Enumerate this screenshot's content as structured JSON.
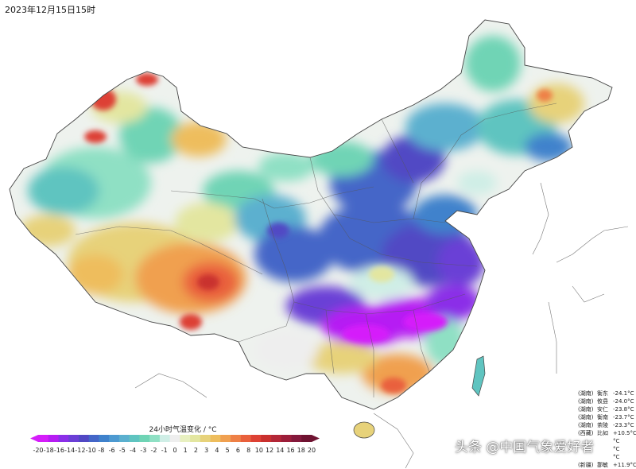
{
  "title": "2023年12月15日15时",
  "legend": {
    "title": "24小时气温变化 / °C",
    "ticks": [
      "-20",
      "-18",
      "-16",
      "-14",
      "-12",
      "-10",
      "-8",
      "-6",
      "-5",
      "-4",
      "-3",
      "-2",
      "-1",
      "0",
      "1",
      "2",
      "3",
      "4",
      "5",
      "6",
      "8",
      "10",
      "12",
      "14",
      "16",
      "18",
      "20"
    ],
    "colors": [
      "#d51dfa",
      "#b61cf3",
      "#8b2fe8",
      "#6b3fd6",
      "#5148c4",
      "#4466c8",
      "#3f82cc",
      "#4d9ad1",
      "#5bb0cf",
      "#5fc4c0",
      "#6fd4b5",
      "#8fe0c4",
      "#cfeee6",
      "#eeeeee",
      "#e8f0c0",
      "#e3e6a0",
      "#e7d27a",
      "#eebd5d",
      "#f0a050",
      "#ee8046",
      "#e9603c",
      "#dd4134",
      "#c9302e",
      "#b32737",
      "#9c1e3a",
      "#84193c",
      "#6f1331"
    ]
  },
  "stations": [
    {
      "prov": "(湖南)",
      "name": "衡东",
      "value": "-24.1°C"
    },
    {
      "prov": "(湖南)",
      "name": "攸县",
      "value": "-24.0°C"
    },
    {
      "prov": "(湖南)",
      "name": "安仁",
      "value": "-23.8°C"
    },
    {
      "prov": "(湖南)",
      "name": "衡南",
      "value": "-23.7°C"
    },
    {
      "prov": "(湖南)",
      "name": "茶陵",
      "value": "-23.3°C"
    },
    {
      "prov": "(西藏)",
      "name": "比如",
      "value": "+10.5°C"
    },
    {
      "prov": "",
      "name": "",
      "value": "°C"
    },
    {
      "prov": "",
      "name": "",
      "value": "°C"
    },
    {
      "prov": "",
      "name": "",
      "value": "°C"
    },
    {
      "prov": "(新疆)",
      "name": "鄯敏",
      "value": "+11.9°C"
    }
  ],
  "watermark": "头条 @中国气象爱好者",
  "regions": [
    "Northwest Xinjiang warm patch",
    "Tibet warming",
    "Hunan/Jiangxi strong cooling",
    "Northeast mixed"
  ]
}
